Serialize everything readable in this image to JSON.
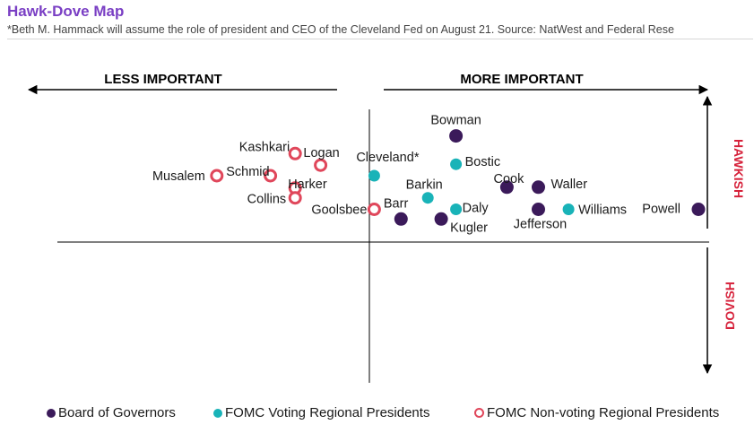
{
  "header": {
    "title": "Hawk-Dove Map",
    "subtitle": "*Beth M. Hammack will assume the role of president and CEO of the Cleveland Fed on August 21. Source: NatWest and Federal Rese"
  },
  "colors": {
    "board": "#3b1a5a",
    "voting": "#19b3b8",
    "nonvoting": "#e0475b",
    "title": "#7a3fc4",
    "axis_label": "#d6213a"
  },
  "chart_data": {
    "type": "scatter",
    "axis_labels": {
      "left": "LESS IMPORTANT",
      "right": "MORE IMPORTANT",
      "top": "HAWKISH",
      "bottom": "DOVISH"
    },
    "series": [
      {
        "name": "Board of Governors",
        "key": "board",
        "marker": "filled",
        "points": [
          {
            "label": "Bowman",
            "x": 1.22,
            "y": 1.2
          },
          {
            "label": "Barr",
            "x": 0.4,
            "y": 0.26
          },
          {
            "label": "Kugler",
            "x": 1.0,
            "y": 0.26
          },
          {
            "label": "Cook",
            "x": 1.98,
            "y": 0.62
          },
          {
            "label": "Waller",
            "x": 2.45,
            "y": 0.62
          },
          {
            "label": "Jefferson",
            "x": 2.45,
            "y": 0.37
          },
          {
            "label": "Powell",
            "x": 4.84,
            "y": 0.37
          }
        ]
      },
      {
        "name": "FOMC Voting Regional Presidents",
        "key": "voting",
        "marker": "filled",
        "points": [
          {
            "label": "Cleveland*",
            "x": 0.0,
            "y": 0.75
          },
          {
            "label": "Bostic",
            "x": 1.22,
            "y": 0.88
          },
          {
            "label": "Barkin",
            "x": 0.8,
            "y": 0.5
          },
          {
            "label": "Daly",
            "x": 1.22,
            "y": 0.37
          },
          {
            "label": "Williams",
            "x": 2.9,
            "y": 0.37
          }
        ]
      },
      {
        "name": "FOMC Non-voting Regional Presidents",
        "key": "nonvoting",
        "marker": "ring",
        "points": [
          {
            "label": "Kashkari",
            "x": -1.18,
            "y": 1.0
          },
          {
            "label": "Logan",
            "x": -0.8,
            "y": 0.87
          },
          {
            "label": "Musalem",
            "x": -2.35,
            "y": 0.75
          },
          {
            "label": "Schmid",
            "x": -1.55,
            "y": 0.75
          },
          {
            "label": "Harker",
            "x": -1.18,
            "y": 0.61
          },
          {
            "label": "Collins",
            "x": -1.18,
            "y": 0.5
          },
          {
            "label": "Goolsbee",
            "x": 0.0,
            "y": 0.37
          }
        ]
      }
    ],
    "xlim": [
      -4.73,
      5.0
    ],
    "ylim": [
      -1.5,
      1.5
    ],
    "grid": false,
    "legend_position": "bottom"
  },
  "legend": [
    {
      "label": "Board of Governors",
      "key": "board",
      "marker": "filled"
    },
    {
      "label": "FOMC Voting Regional Presidents",
      "key": "voting",
      "marker": "filled"
    },
    {
      "label": "FOMC Non-voting Regional Presidents",
      "key": "nonvoting",
      "marker": "ring"
    }
  ]
}
